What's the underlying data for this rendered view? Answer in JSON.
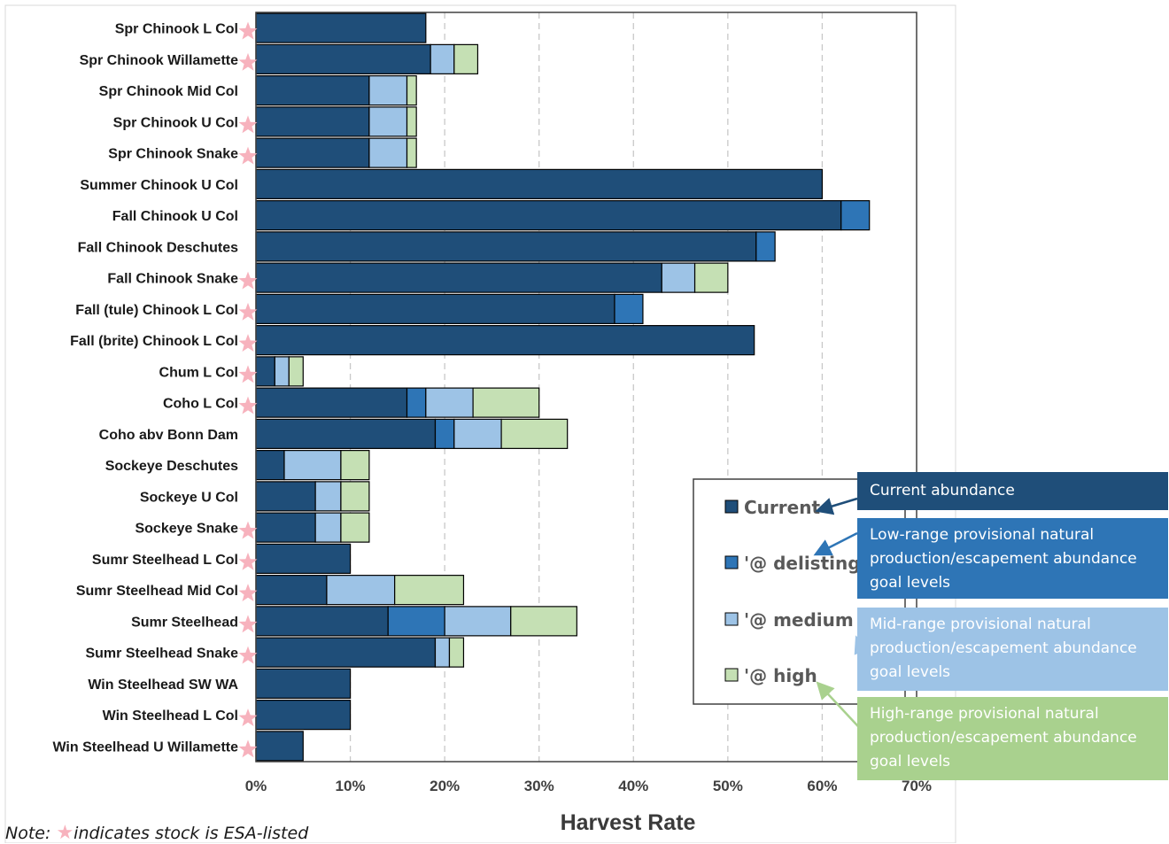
{
  "chart_data": {
    "type": "bar",
    "orientation": "horizontal",
    "stacked": true,
    "xlabel": "Harvest Rate",
    "xlim": [
      0,
      70
    ],
    "xticks": [
      "0%",
      "10%",
      "20%",
      "30%",
      "40%",
      "50%",
      "60%",
      "70%"
    ],
    "grid": "vertical dashed",
    "legend_position": "lower-right inside plot",
    "categories": [
      "Spr Chinook L Col",
      "Spr Chinook Willamette",
      "Spr Chinook Mid Col",
      "Spr Chinook U Col",
      "Spr Chinook Snake",
      "Summer Chinook U Col",
      "Fall Chinook U Col",
      "Fall Chinook Deschutes",
      "Fall Chinook Snake",
      "Fall (tule) Chinook L Col",
      "Fall (brite) Chinook L Col",
      "Chum L Col",
      "Coho L Col",
      "Coho abv Bonn Dam",
      "Sockeye Deschutes",
      "Sockeye U Col",
      "Sockeye Snake",
      "Sumr Steelhead L Col",
      "Sumr Steelhead Mid Col",
      "Sumr Steelhead",
      "Sumr Steelhead Snake",
      "Win Steelhead SW WA",
      "Win Steelhead L Col",
      "Win Steelhead U Willamette"
    ],
    "esa_listed": [
      true,
      true,
      false,
      true,
      true,
      false,
      false,
      false,
      true,
      true,
      true,
      true,
      true,
      false,
      false,
      false,
      true,
      true,
      true,
      true,
      true,
      false,
      true,
      true
    ],
    "series": [
      {
        "name": "Current",
        "color": "#1f4e79",
        "values": [
          18,
          18.5,
          12,
          12,
          12,
          60,
          62,
          53,
          43,
          38,
          52.8,
          2,
          16,
          19,
          3,
          6.3,
          6.3,
          10,
          7.5,
          14,
          19,
          10,
          10,
          5
        ]
      },
      {
        "name": "'@ delisting",
        "color": "#2e75b6",
        "values": [
          0,
          0,
          0,
          0,
          0,
          0,
          3,
          2,
          0,
          3,
          0,
          0,
          2,
          2,
          0,
          0,
          0,
          0,
          0,
          6,
          0,
          0,
          0,
          0
        ]
      },
      {
        "name": "'@ medium",
        "color": "#9dc3e6",
        "values": [
          0,
          2.5,
          4,
          4,
          4,
          0,
          0,
          0,
          3.5,
          0,
          0,
          1.5,
          5,
          5,
          6,
          2.7,
          2.7,
          0,
          7.2,
          7,
          1.5,
          0,
          0,
          0
        ]
      },
      {
        "name": "'@ high",
        "color": "#c5e0b4",
        "values": [
          0,
          2.5,
          1,
          1,
          1,
          0,
          0,
          0,
          3.5,
          0,
          0,
          1.5,
          7,
          7,
          3,
          3,
          3,
          0,
          7.3,
          7,
          1.5,
          0,
          0,
          0
        ]
      }
    ]
  },
  "callouts": [
    {
      "text": "Current abundance",
      "color": "#1f4e79"
    },
    {
      "text": "Low-range provisional natural production/escapement abundance goal levels",
      "color": "#2e75b6"
    },
    {
      "text": "Mid-range provisional natural production/escapement abundance goal levels",
      "color": "#9dc3e6"
    },
    {
      "text": "High-range provisional natural production/escapement abundance goal levels",
      "color": "#a9d18e"
    }
  ],
  "note": {
    "prefix": "Note:",
    "suffix": "indicates stock is ESA-listed"
  },
  "icons": {
    "esa_marker": "pink-star-icon",
    "callout_pointer": "arrow-icon"
  }
}
